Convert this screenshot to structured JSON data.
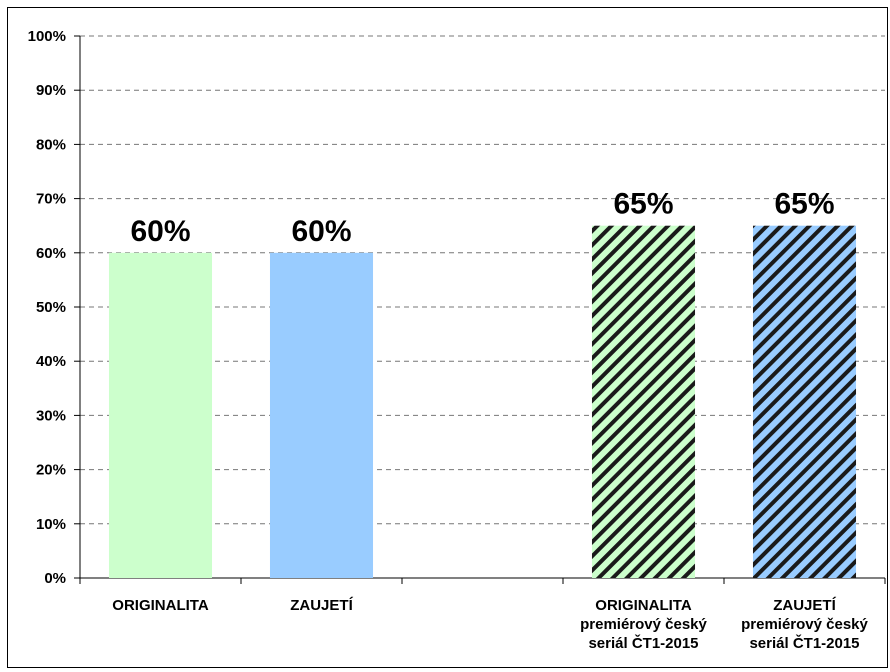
{
  "chart_data": {
    "type": "bar",
    "categories": [
      "ORIGINALITA",
      "ZAUJETÍ",
      null,
      "ORIGINALITA\npremiérový český\nseriál ČT1-2015",
      "ZAUJETÍ\npremiérový český\nseriál ČT1-2015"
    ],
    "values": [
      60,
      60,
      null,
      65,
      65
    ],
    "value_labels": [
      "60%",
      "60%",
      null,
      "65%",
      "65%"
    ],
    "colors": [
      "#ccffcc",
      "#99ccff",
      null,
      "#ccffcc",
      "#99ccff"
    ],
    "hatched": [
      false,
      false,
      null,
      true,
      true
    ],
    "ylim": [
      0,
      100
    ],
    "yticks": [
      {
        "value": 0,
        "label": "0%"
      },
      {
        "value": 10,
        "label": "10%"
      },
      {
        "value": 20,
        "label": "20%"
      },
      {
        "value": 30,
        "label": "30%"
      },
      {
        "value": 40,
        "label": "40%"
      },
      {
        "value": 50,
        "label": "50%"
      },
      {
        "value": 60,
        "label": "60%"
      },
      {
        "value": 70,
        "label": "70%"
      },
      {
        "value": 80,
        "label": "80%"
      },
      {
        "value": 90,
        "label": "90%"
      },
      {
        "value": 100,
        "label": "100%"
      }
    ],
    "grid": true
  }
}
